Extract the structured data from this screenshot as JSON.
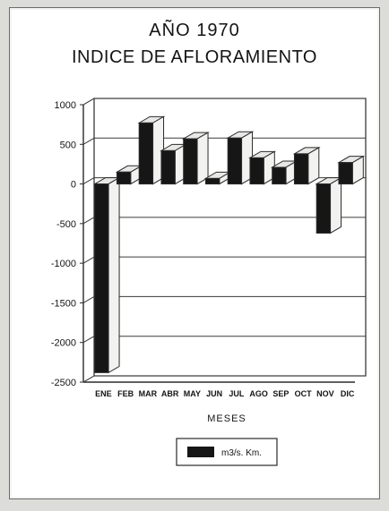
{
  "chart_data": {
    "type": "bar",
    "title_line1": "AÑO 1970",
    "title_line2": "INDICE DE AFLORAMIENTO",
    "xlabel": "MESES",
    "ylabel": "",
    "categories": [
      "ENE",
      "FEB",
      "MAR",
      "ABR",
      "MAY",
      "JUN",
      "JUL",
      "AGO",
      "SEP",
      "OCT",
      "NOV",
      "DIC"
    ],
    "series": [
      {
        "name": "m3/s. Km.",
        "values": [
          -2380,
          150,
          770,
          420,
          570,
          70,
          580,
          330,
          210,
          380,
          -620,
          270
        ]
      }
    ],
    "ylim": [
      -2500,
      1000
    ],
    "yticks": [
      1000,
      500,
      0,
      -500,
      -1000,
      -1500,
      -2000,
      -2500
    ],
    "ytick_labels": [
      "1000",
      "500",
      "0",
      "-500",
      "-1000",
      "-1500",
      "-2000",
      "-2500"
    ],
    "grid": true,
    "style": "3d-bar",
    "legend_position": "bottom-center",
    "colors": {
      "bar_front": "#161616",
      "bar_top": "#e8e8e6",
      "bar_side": "#f2f2f0",
      "line": "#2a2a2a",
      "grid": "#3a3a3a"
    }
  }
}
